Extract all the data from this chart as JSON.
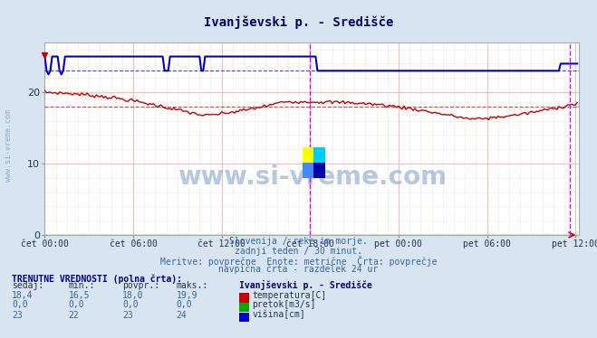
{
  "title": "Ivanjševski p. - Središče",
  "background_color": "#d8e4f0",
  "plot_bg_color": "#ffffff",
  "grid_color_major": "#ffbbbb",
  "grid_color_minor": "#ffe8e8",
  "xlim": [
    0,
    290
  ],
  "ylim": [
    0,
    27
  ],
  "yticks": [
    0,
    10,
    20
  ],
  "xtick_labels": [
    "čet 00:00",
    "čet 06:00",
    "čet 12:00",
    "čet 18:00",
    "pet 00:00",
    "pet 06:00",
    "pet 12:00"
  ],
  "xtick_positions": [
    0,
    48,
    96,
    144,
    192,
    240,
    288
  ],
  "vertical_line1": 144,
  "vertical_line2": 285,
  "vertical_line_color": "#ee00ee",
  "avg_temp_line": 18.0,
  "avg_height_line": 23.0,
  "temp_color": "#cc0000",
  "height_color": "#0000cc",
  "pretok_color": "#00aa00",
  "watermark_text": "www.si-vreme.com",
  "watermark_color": "#3366aa",
  "watermark_alpha": 0.35,
  "subtitle_lines": [
    "Slovenija / reke in morje.",
    "zadnji teden / 30 minut.",
    "Meritve: povprečne  Enote: metrične  Črta: povprečje",
    "navpična črta - razdelek 24 ur"
  ],
  "legend_title2": "Ivanjševski p. - Središče",
  "table_header": "TRENUTNE VREDNOSTI (polna črta):",
  "col_headers": [
    "sedaj:",
    "min.:",
    "povpr.:",
    "maks.:"
  ],
  "row1": [
    "18,4",
    "16,5",
    "18,0",
    "19,9"
  ],
  "row2": [
    "0,0",
    "0,0",
    "0,0",
    "0,0"
  ],
  "row3": [
    "23",
    "22",
    "23",
    "24"
  ],
  "legend_labels": [
    "temperatura[C]",
    "pretok[m3/s]",
    "višina[cm]"
  ],
  "n_points": 290,
  "logo_colors": [
    "#ffff00",
    "#00ccff",
    "#4488ff",
    "#0000aa"
  ]
}
